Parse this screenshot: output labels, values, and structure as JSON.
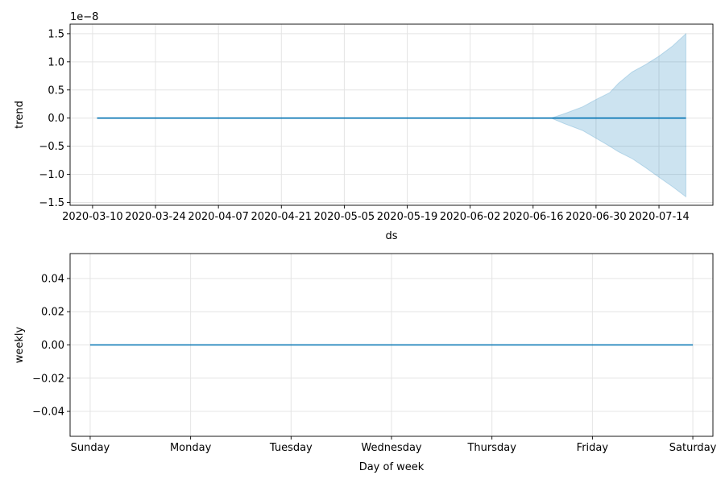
{
  "chart_data": [
    {
      "type": "line",
      "xlabel": "ds",
      "ylabel": "trend",
      "y_exponent_label": "1e−8",
      "x_ticks": [
        "2020-03-10",
        "2020-03-24",
        "2020-04-07",
        "2020-04-21",
        "2020-05-05",
        "2020-05-19",
        "2020-06-02",
        "2020-06-16",
        "2020-06-30",
        "2020-07-14"
      ],
      "y_ticks": [
        "1.5",
        "1.0",
        "0.5",
        "0.0",
        "−0.5",
        "−1.0",
        "−1.5"
      ],
      "y_tick_values": [
        1.5,
        1.0,
        0.5,
        0.0,
        -0.5,
        -1.0,
        -1.5
      ],
      "xlim": [
        "2020-03-05",
        "2020-07-26"
      ],
      "ylim": [
        -1.55,
        1.67
      ],
      "grid": true,
      "series": [
        {
          "color": "#0072B2",
          "x": [
            "2020-03-11",
            "2020-07-20"
          ],
          "values": [
            0.0,
            0.0
          ]
        }
      ],
      "uncertainty_band": {
        "color": "#0072B2",
        "x": [
          "2020-06-20",
          "2020-06-23",
          "2020-06-27",
          "2020-06-30",
          "2020-07-03",
          "2020-07-05",
          "2020-07-08",
          "2020-07-11",
          "2020-07-14",
          "2020-07-17",
          "2020-07-20"
        ],
        "upper": [
          0.0,
          0.08,
          0.2,
          0.33,
          0.45,
          0.62,
          0.82,
          0.95,
          1.1,
          1.28,
          1.5
        ],
        "lower": [
          0.0,
          -0.1,
          -0.22,
          -0.36,
          -0.5,
          -0.6,
          -0.72,
          -0.88,
          -1.05,
          -1.22,
          -1.4
        ]
      }
    },
    {
      "type": "line",
      "xlabel": "Day of week",
      "ylabel": "weekly",
      "x_ticks": [
        "Sunday",
        "Monday",
        "Tuesday",
        "Wednesday",
        "Thursday",
        "Friday",
        "Saturday"
      ],
      "y_ticks": [
        "0.04",
        "0.02",
        "0.00",
        "−0.02",
        "−0.04"
      ],
      "y_tick_values": [
        0.04,
        0.02,
        0.0,
        -0.02,
        -0.04
      ],
      "xlim": [
        -0.2,
        6.2
      ],
      "ylim": [
        -0.055,
        0.055
      ],
      "grid": true,
      "series": [
        {
          "color": "#0072B2",
          "x": [
            0,
            1,
            2,
            3,
            4,
            5,
            6
          ],
          "values": [
            0,
            0,
            0,
            0,
            0,
            0,
            0
          ]
        }
      ]
    }
  ]
}
